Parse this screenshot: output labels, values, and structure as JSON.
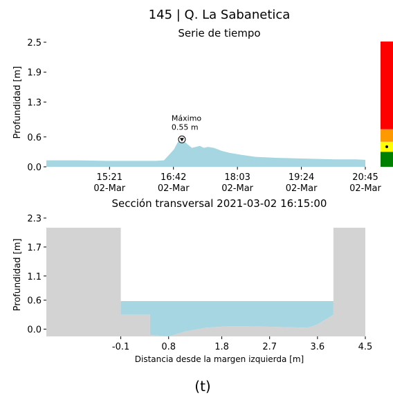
{
  "page": {
    "title": "145 | Q. La Sabanetica",
    "caption": "(t)"
  },
  "colors": {
    "water": "#a6d6e2",
    "ground": "#d3d3d3",
    "axis": "#000000",
    "level_red": "#ff0000",
    "level_orange": "#ff9900",
    "level_yellow": "#ffff00",
    "level_green": "#008000"
  },
  "chart_data": [
    {
      "id": "timeseries",
      "type": "area",
      "title": "Serie de tiempo",
      "xlabel": "",
      "ylabel": "Profundidad [m]",
      "ylim": [
        0,
        2.5
      ],
      "yticks": [
        "0.0",
        "0.6",
        "1.3",
        "1.9",
        "2.5"
      ],
      "ytick_values": [
        0.0,
        0.6,
        1.3,
        1.9,
        2.5
      ],
      "xlim_minutes": [
        0,
        320
      ],
      "xticks": [
        {
          "value": 80,
          "line1": "15:21",
          "line2": "02-Mar"
        },
        {
          "value": 161,
          "line1": "16:42",
          "line2": "02-Mar"
        },
        {
          "value": 242,
          "line1": "18:03",
          "line2": "02-Mar"
        },
        {
          "value": 323,
          "line1": "19:24",
          "line2": "02-Mar"
        },
        {
          "value": 404,
          "line1": "20:45",
          "line2": "02-Mar"
        }
      ],
      "x": [
        0,
        30,
        60,
        90,
        110,
        118,
        124,
        128,
        132,
        136,
        140,
        146,
        150,
        154,
        158,
        162,
        168,
        176,
        184,
        196,
        210,
        230,
        250,
        270,
        290,
        310,
        330,
        350,
        370,
        390,
        404,
        410
      ],
      "y": [
        0.13,
        0.13,
        0.12,
        0.12,
        0.12,
        0.13,
        0.26,
        0.35,
        0.5,
        0.55,
        0.48,
        0.38,
        0.4,
        0.42,
        0.38,
        0.4,
        0.38,
        0.32,
        0.28,
        0.24,
        0.2,
        0.18,
        0.17,
        0.16,
        0.15,
        0.15,
        0.14,
        0.14,
        0.14,
        0.13,
        0.13,
        0.13
      ],
      "annotation": {
        "label_line1": "Máximo",
        "label_line2": "0.55 m",
        "x": 136,
        "y": 0.55
      },
      "level_bar": {
        "segments": [
          {
            "from": 0.0,
            "to": 0.12,
            "color": "#008000"
          },
          {
            "from": 0.12,
            "to": 0.2,
            "color": "#ffff00"
          },
          {
            "from": 0.2,
            "to": 0.3,
            "color": "#ff9900"
          },
          {
            "from": 0.3,
            "to": 1.0,
            "color": "#ff0000"
          }
        ],
        "current_level_fraction": 0.16
      }
    },
    {
      "id": "crosssection",
      "type": "area",
      "title": "Sección transversal 2021-03-02 16:15:00",
      "xlabel": "Distancia desde la margen izquierda [m]",
      "ylabel": "Profundidad [m]",
      "ylim": [
        -0.15,
        2.3
      ],
      "xlim": [
        -1.5,
        4.5
      ],
      "yticks": [
        "0.0",
        "0.6",
        "1.1",
        "1.7",
        "2.3"
      ],
      "ytick_values": [
        0.0,
        0.6,
        1.1,
        1.7,
        2.3
      ],
      "xticks": [
        "-0.1",
        "0.8",
        "1.8",
        "2.7",
        "3.6",
        "4.5"
      ],
      "xtick_values": [
        -0.1,
        0.8,
        1.8,
        2.7,
        3.6,
        4.5
      ],
      "water_level": 0.58,
      "bed": {
        "x": [
          -1.5,
          -0.1,
          -0.1,
          0.45,
          0.45,
          0.8,
          1.1,
          1.5,
          1.9,
          2.3,
          2.7,
          3.1,
          3.4,
          3.5,
          3.6,
          3.9,
          3.9,
          4.5
        ],
        "y": [
          2.1,
          2.1,
          0.3,
          0.3,
          -0.12,
          -0.15,
          -0.05,
          0.03,
          0.06,
          0.06,
          0.05,
          0.04,
          0.03,
          0.06,
          0.1,
          0.3,
          2.1,
          2.1
        ]
      }
    }
  ]
}
